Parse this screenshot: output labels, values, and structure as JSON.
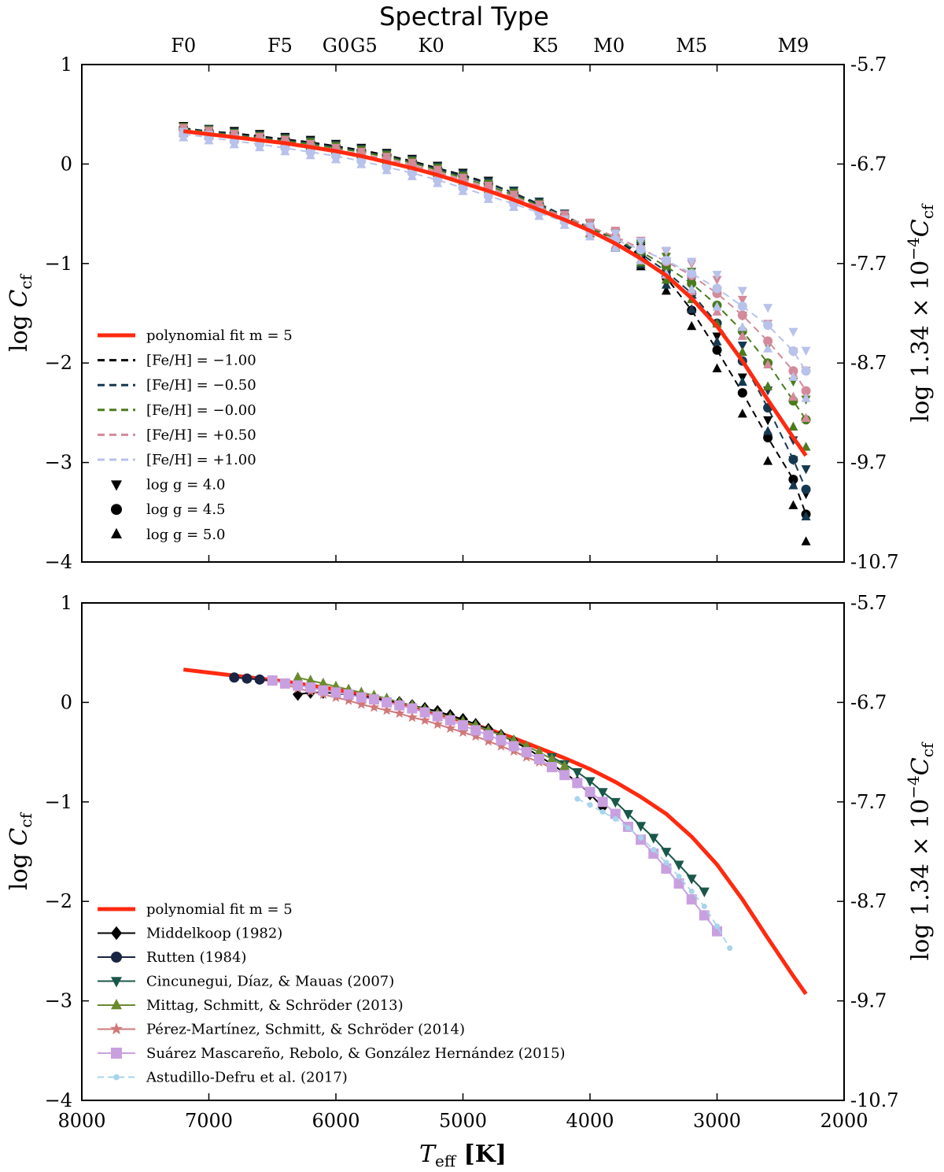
{
  "figure": {
    "top_axis_title": "Spectral Type",
    "spectral_types": [
      {
        "label": "F0",
        "teff": 7200
      },
      {
        "label": "F5",
        "teff": 6440
      },
      {
        "label": "G0",
        "teff": 6000
      },
      {
        "label": "G5",
        "teff": 5780
      },
      {
        "label": "K0",
        "teff": 5250
      },
      {
        "label": "K5",
        "teff": 4350
      },
      {
        "label": "M0",
        "teff": 3850
      },
      {
        "label": "M5",
        "teff": 3200
      },
      {
        "label": "M9",
        "teff": 2400
      }
    ],
    "xlabel": "T_eff [K]",
    "ylabel_left": "log C_cf",
    "ylabel_right": "log 1.34 × 10^-4 C_cf",
    "xticks": [
      "8000",
      "7000",
      "6000",
      "5000",
      "4000",
      "3000",
      "2000"
    ],
    "yticks_left": [
      "1",
      "0",
      "−1",
      "−2",
      "−3",
      "−4"
    ],
    "yticks_right": [
      "-5.7",
      "-6.7",
      "-7.7",
      "-8.7",
      "-9.7",
      "-10.7"
    ]
  },
  "chart_data": [
    {
      "type": "line",
      "panel": "top",
      "xlim": [
        8000,
        2000
      ],
      "ylim": [
        -4,
        1
      ],
      "xlabel": "T_eff [K]",
      "ylabel": "log C_cf",
      "legend_position": "lower-left",
      "fit": {
        "name": "polynomial fit m = 5",
        "color": "#ff2a10",
        "x": [
          7200,
          7000,
          6800,
          6600,
          6400,
          6200,
          6000,
          5800,
          5600,
          5400,
          5200,
          5000,
          4800,
          4600,
          4400,
          4200,
          4000,
          3800,
          3600,
          3400,
          3200,
          3000,
          2800,
          2600,
          2400,
          2300
        ],
        "y": [
          0.33,
          0.3,
          0.27,
          0.24,
          0.21,
          0.17,
          0.13,
          0.08,
          0.02,
          -0.04,
          -0.11,
          -0.19,
          -0.27,
          -0.36,
          -0.46,
          -0.56,
          -0.67,
          -0.8,
          -0.95,
          -1.12,
          -1.35,
          -1.63,
          -1.98,
          -2.37,
          -2.75,
          -2.93
        ]
      },
      "series": [
        {
          "name": "[Fe/H] = −1.00",
          "color": "#000000",
          "x": [
            7200,
            7000,
            6800,
            6600,
            6400,
            6200,
            6000,
            5800,
            5600,
            5400,
            5200,
            5000,
            4800,
            4600,
            4400,
            4200,
            4000,
            3800,
            3600,
            3400,
            3200,
            3000,
            2800,
            2600,
            2400,
            2300
          ],
          "y": [
            0.36,
            0.33,
            0.31,
            0.28,
            0.25,
            0.22,
            0.18,
            0.14,
            0.09,
            0.03,
            -0.04,
            -0.11,
            -0.19,
            -0.29,
            -0.42,
            -0.53,
            -0.64,
            -0.76,
            -0.92,
            -1.14,
            -1.47,
            -1.87,
            -2.3,
            -2.75,
            -3.17,
            -3.52
          ]
        },
        {
          "name": "[Fe/H] = −0.50",
          "color": "#16384f",
          "x": [
            7200,
            7000,
            6800,
            6600,
            6400,
            6200,
            6000,
            5800,
            5600,
            5400,
            5200,
            5000,
            4800,
            4600,
            4400,
            4200,
            4000,
            3800,
            3600,
            3400,
            3200,
            3000,
            2800,
            2600,
            2400,
            2300
          ],
          "y": [
            0.35,
            0.33,
            0.3,
            0.27,
            0.24,
            0.21,
            0.17,
            0.13,
            0.08,
            0.02,
            -0.05,
            -0.12,
            -0.2,
            -0.29,
            -0.4,
            -0.52,
            -0.64,
            -0.76,
            -0.9,
            -1.08,
            -1.3,
            -1.6,
            -1.98,
            -2.45,
            -2.97,
            -3.27
          ]
        },
        {
          "name": "[Fe/H] = −0.00",
          "color": "#4a7b1e",
          "x": [
            7200,
            7000,
            6800,
            6600,
            6400,
            6200,
            6000,
            5800,
            5600,
            5400,
            5200,
            5000,
            4800,
            4600,
            4400,
            4200,
            4000,
            3800,
            3600,
            3400,
            3200,
            3000,
            2800,
            2600,
            2400,
            2300
          ],
          "y": [
            0.35,
            0.32,
            0.29,
            0.26,
            0.23,
            0.2,
            0.16,
            0.12,
            0.07,
            0.01,
            -0.06,
            -0.14,
            -0.22,
            -0.31,
            -0.42,
            -0.53,
            -0.64,
            -0.75,
            -0.88,
            -1.03,
            -1.2,
            -1.42,
            -1.68,
            -2.0,
            -2.38,
            -2.57
          ]
        },
        {
          "name": "[Fe/H] = +0.50",
          "color": "#d38a9a",
          "x": [
            7200,
            7000,
            6800,
            6600,
            6400,
            6200,
            6000,
            5800,
            5600,
            5400,
            5200,
            5000,
            4800,
            4600,
            4400,
            4200,
            4000,
            3800,
            3600,
            3400,
            3200,
            3000,
            2800,
            2600,
            2400,
            2300
          ],
          "y": [
            0.34,
            0.31,
            0.28,
            0.25,
            0.22,
            0.18,
            0.14,
            0.1,
            0.05,
            -0.01,
            -0.08,
            -0.16,
            -0.24,
            -0.33,
            -0.43,
            -0.53,
            -0.63,
            -0.73,
            -0.85,
            -0.98,
            -1.12,
            -1.3,
            -1.52,
            -1.78,
            -2.08,
            -2.28
          ]
        },
        {
          "name": "[Fe/H] = +1.00",
          "color": "#b8c2ea",
          "x": [
            7200,
            7000,
            6800,
            6600,
            6400,
            6200,
            6000,
            5800,
            5600,
            5400,
            5200,
            5000,
            4800,
            4600,
            4400,
            4200,
            4000,
            3800,
            3600,
            3400,
            3200,
            3000,
            2800,
            2600,
            2400,
            2300
          ],
          "y": [
            0.3,
            0.27,
            0.23,
            0.2,
            0.16,
            0.12,
            0.08,
            0.03,
            -0.03,
            -0.09,
            -0.16,
            -0.24,
            -0.32,
            -0.4,
            -0.49,
            -0.58,
            -0.67,
            -0.76,
            -0.86,
            -0.97,
            -1.1,
            -1.25,
            -1.43,
            -1.62,
            -1.88,
            -2.08
          ]
        }
      ],
      "marker_legend": [
        {
          "name": "log g = 4.0",
          "marker": "triangle-down"
        },
        {
          "name": "log g = 4.5",
          "marker": "circle"
        },
        {
          "name": "log g = 5.0",
          "marker": "triangle-up"
        }
      ]
    },
    {
      "type": "line",
      "panel": "bottom",
      "xlim": [
        8000,
        2000
      ],
      "ylim": [
        -4,
        1
      ],
      "xlabel": "T_eff [K]",
      "ylabel": "log C_cf",
      "legend_position": "lower-left",
      "fit": {
        "name": "polynomial fit m = 5",
        "color": "#ff2a10",
        "x": [
          7200,
          7000,
          6800,
          6600,
          6400,
          6200,
          6000,
          5800,
          5600,
          5400,
          5200,
          5000,
          4800,
          4600,
          4400,
          4200,
          4000,
          3800,
          3600,
          3400,
          3200,
          3000,
          2800,
          2600,
          2400,
          2300
        ],
        "y": [
          0.33,
          0.3,
          0.27,
          0.24,
          0.21,
          0.17,
          0.13,
          0.08,
          0.02,
          -0.04,
          -0.11,
          -0.19,
          -0.27,
          -0.36,
          -0.46,
          -0.56,
          -0.67,
          -0.8,
          -0.95,
          -1.12,
          -1.35,
          -1.63,
          -1.98,
          -2.37,
          -2.75,
          -2.93
        ]
      },
      "series": [
        {
          "name": "Middelkoop (1982)",
          "color": "#000000",
          "marker": "diamond",
          "x": [
            6300,
            6200,
            6100,
            6000,
            5900,
            5800,
            5700,
            5600,
            5500,
            5400,
            5300,
            5200,
            5100,
            5000,
            4900,
            4800,
            4700,
            4600,
            4500,
            4400,
            4300,
            4200,
            4100,
            4000,
            3900
          ],
          "y": [
            0.08,
            0.1,
            0.1,
            0.09,
            0.08,
            0.06,
            0.04,
            0.02,
            0.0,
            -0.03,
            -0.06,
            -0.09,
            -0.13,
            -0.17,
            -0.22,
            -0.27,
            -0.33,
            -0.39,
            -0.46,
            -0.54,
            -0.62,
            -0.71,
            -0.8,
            -0.92,
            -1.05
          ]
        },
        {
          "name": "Rutten (1984)",
          "color": "#1a2444",
          "marker": "circle",
          "x": [
            6800,
            6700,
            6600,
            6500
          ],
          "y": [
            0.25,
            0.24,
            0.23,
            0.22
          ]
        },
        {
          "name": "Cincunegui, Díaz, & Mauas (2007)",
          "color": "#19574a",
          "marker": "triangle-down",
          "x": [
            4300,
            4200,
            4100,
            4000,
            3900,
            3800,
            3700,
            3600,
            3500,
            3400,
            3300,
            3200,
            3100
          ],
          "y": [
            -0.55,
            -0.62,
            -0.7,
            -0.79,
            -0.9,
            -1.0,
            -1.12,
            -1.24,
            -1.36,
            -1.5,
            -1.63,
            -1.77,
            -1.9
          ]
        },
        {
          "name": "Mittag, Schmitt, & Schröder (2013)",
          "color": "#6b8a2f",
          "marker": "triangle-up",
          "x": [
            6300,
            6200,
            6100,
            6000,
            5900,
            5800,
            5700,
            5600,
            5500,
            5400,
            5300,
            5200,
            5100,
            5000,
            4900,
            4800,
            4700,
            4600,
            4500,
            4400,
            4300,
            4200
          ],
          "y": [
            0.25,
            0.22,
            0.19,
            0.16,
            0.13,
            0.1,
            0.07,
            0.04,
            0.0,
            -0.03,
            -0.07,
            -0.11,
            -0.15,
            -0.19,
            -0.23,
            -0.28,
            -0.33,
            -0.38,
            -0.44,
            -0.5,
            -0.57,
            -0.64
          ]
        },
        {
          "name": "Pérez-Martínez, Schmitt, & Schröder (2014)",
          "color": "#d0797a",
          "marker": "star",
          "x": [
            6400,
            6300,
            6200,
            6100,
            6000,
            5900,
            5800,
            5700,
            5600,
            5500,
            5400,
            5300,
            5200,
            5100,
            5000,
            4900,
            4800,
            4700,
            4600,
            4500,
            4400,
            4300
          ],
          "y": [
            0.18,
            0.14,
            0.11,
            0.08,
            0.05,
            0.02,
            -0.02,
            -0.05,
            -0.08,
            -0.11,
            -0.15,
            -0.18,
            -0.22,
            -0.26,
            -0.3,
            -0.34,
            -0.39,
            -0.44,
            -0.49,
            -0.55,
            -0.6,
            -0.66
          ]
        },
        {
          "name": "Suárez Mascareño, Rebolo, & González Hernández (2015)",
          "color": "#c9a0df",
          "marker": "square",
          "x": [
            6500,
            6400,
            6300,
            6200,
            6100,
            6000,
            5900,
            5800,
            5700,
            5600,
            5500,
            5400,
            5300,
            5200,
            5100,
            5000,
            4900,
            4800,
            4700,
            4600,
            4500,
            4400,
            4300,
            4200,
            4100,
            4000,
            3900,
            3800,
            3700,
            3600,
            3500,
            3400,
            3300,
            3200,
            3100,
            3000
          ],
          "y": [
            0.22,
            0.19,
            0.17,
            0.15,
            0.12,
            0.1,
            0.08,
            0.05,
            0.03,
            0.0,
            -0.03,
            -0.06,
            -0.1,
            -0.14,
            -0.18,
            -0.23,
            -0.28,
            -0.33,
            -0.38,
            -0.44,
            -0.5,
            -0.57,
            -0.65,
            -0.73,
            -0.81,
            -0.9,
            -1.0,
            -1.12,
            -1.25,
            -1.38,
            -1.52,
            -1.67,
            -1.82,
            -1.98,
            -2.14,
            -2.3
          ]
        },
        {
          "name": "Astudillo-Defru et al. (2017)",
          "color": "#a8d4ec",
          "marker": "dot",
          "x": [
            4100,
            4000,
            3900,
            3800,
            3700,
            3600,
            3500,
            3400,
            3300,
            3200,
            3100,
            3000,
            2900
          ],
          "y": [
            -0.97,
            -1.03,
            -1.1,
            -1.17,
            -1.26,
            -1.36,
            -1.48,
            -1.61,
            -1.75,
            -1.9,
            -2.05,
            -2.25,
            -2.47
          ]
        }
      ]
    }
  ]
}
